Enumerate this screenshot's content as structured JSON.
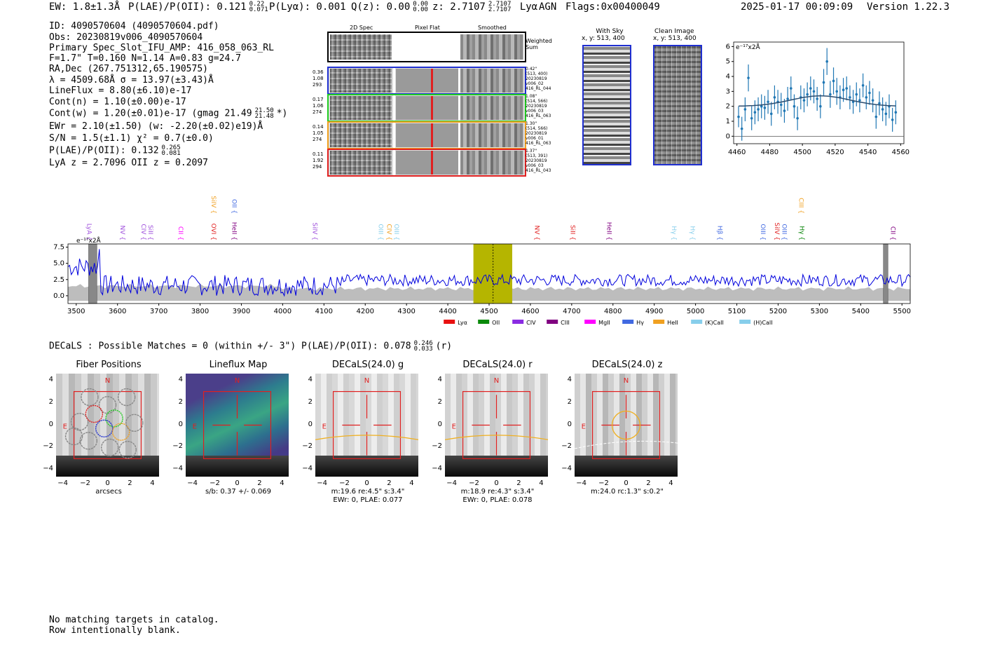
{
  "header": {
    "ew": "EW: 1.8±1.3Å",
    "plae": "P(LAE)/P(OII): 0.121",
    "plae_hi": "0.22",
    "plae_lo": "0.071",
    "plya": "P(Lyα): 0.001",
    "qz": "Q(z): 0.00",
    "qz_hi": "0.00",
    "qz_lo": "0.00",
    "z": "z: 2.7107",
    "z_hi": "2.7107",
    "z_lo": "2.7107",
    "z_line": "Lyα",
    "agn": "AGN",
    "flags": "Flags:0x00400049",
    "timestamp": "2025-01-17 00:09:09",
    "version": "Version 1.22.3"
  },
  "info": {
    "id": "ID: 4090570604 (4090570604.pdf)",
    "obs": "Obs: 20230819v006_4090570604",
    "primary": "Primary Spec_Slot_IFU_AMP: 416_058_063_RL",
    "params": "F=1.7\"  T=0.160  N=1.14  A=0.83  g=24.7",
    "radec": "RA,Dec (267.751312,65.190575)",
    "lambda": "λ = 4509.68Å  σ = 13.97(±3.43)Å",
    "lineflux": "LineFlux = 8.80(±6.10)e-17",
    "contn": "Cont(n) = 1.10(±0.00)e-17",
    "contw": "Cont(w) = 1.20(±0.01)e-17 (gmag 21.49",
    "contw_hi": "21.50",
    "contw_lo": "21.48",
    "contw_end": "*)",
    "ewr": "EWr = 2.10(±1.50) (w: -2.20(±0.02)e19)Å",
    "sn": "S/N = 1.5(±1.1)  χ² = 0.7(±0.0)",
    "plae2": "P(LAE)/P(OII): 0.132",
    "plae2_hi": "0.265",
    "plae2_lo": "0.081",
    "lyaz": "LyA z = 2.7096  OII z = 0.2097"
  },
  "cutouts": {
    "col_2d": "2D Spec",
    "col_flat": "Pixel Flat",
    "col_smooth": "Smoothed",
    "weighted": "Weighted Sum",
    "rows": [
      {
        "nums": [
          "0.36",
          "1.08",
          "293"
        ],
        "side": [
          "0.42\"",
          "(513, 400)",
          "20230819",
          "v006_02",
          "416_RL_044"
        ],
        "color": "#1f2fd0"
      },
      {
        "nums": [
          "0.17",
          "1.06",
          "274"
        ],
        "side": [
          "1.08\"",
          "(514, 566)",
          "20230819",
          "v006_03",
          "416_RL_063"
        ],
        "color": "#22cc22"
      },
      {
        "nums": [
          "0.14",
          "1.05",
          "274"
        ],
        "side": [
          "1.30\"",
          "(514, 566)",
          "20230819",
          "v006_01",
          "416_RL_063"
        ],
        "color": "#f0a020"
      },
      {
        "nums": [
          "0.11",
          "1.92",
          "294"
        ],
        "side": [
          "1.37\"",
          "(513, 391)",
          "20230819",
          "v006_03",
          "416_RL_043"
        ],
        "color": "#e02020"
      }
    ],
    "with_sky": "With Sky",
    "with_sky_xy": "x, y: 513, 400",
    "clean": "Clean Image",
    "clean_xy": "x, y: 513, 400"
  },
  "chart_data": [
    {
      "type": "scatter",
      "title": "",
      "ylabel_unit": "e⁻¹⁷x2Å",
      "xlim": [
        4458,
        4562
      ],
      "ylim": [
        -0.5,
        6.3
      ],
      "xticks": [
        "4460",
        "4480",
        "4500",
        "4520",
        "4540",
        "4560"
      ],
      "yticks": [
        "0",
        "1",
        "2",
        "3",
        "4",
        "5",
        "6"
      ],
      "x": [
        4461,
        4463,
        4465,
        4467,
        4469,
        4471,
        4473,
        4475,
        4477,
        4479,
        4481,
        4483,
        4485,
        4487,
        4489,
        4491,
        4493,
        4495,
        4497,
        4499,
        4501,
        4503,
        4505,
        4507,
        4509,
        4511,
        4513,
        4515,
        4517,
        4519,
        4521,
        4523,
        4525,
        4527,
        4529,
        4531,
        4533,
        4535,
        4537,
        4539,
        4541,
        4543,
        4545,
        4547,
        4549,
        4551,
        4553,
        4555,
        4557
      ],
      "y": [
        1.3,
        0.5,
        1.8,
        3.9,
        1.2,
        1.6,
        1.8,
        2.0,
        1.9,
        2.3,
        1.5,
        2.6,
        2.3,
        2.1,
        1.7,
        2.5,
        3.2,
        2.0,
        1.2,
        2.6,
        2.4,
        2.8,
        3.2,
        3.0,
        2.5,
        2.0,
        3.6,
        5.0,
        2.8,
        3.7,
        3.0,
        2.6,
        3.1,
        3.2,
        2.6,
        2.3,
        2.8,
        2.4,
        3.4,
        2.6,
        2.9,
        2.4,
        1.3,
        2.2,
        1.8,
        1.5,
        2.0,
        1.1,
        1.6
      ],
      "yerr": [
        0.7,
        0.8,
        0.8,
        0.9,
        0.8,
        0.8,
        0.8,
        0.8,
        0.8,
        0.8,
        0.8,
        0.8,
        0.8,
        0.8,
        0.8,
        0.8,
        0.8,
        0.8,
        0.8,
        0.8,
        0.8,
        0.8,
        0.8,
        0.8,
        0.8,
        0.8,
        0.9,
        0.9,
        0.9,
        0.9,
        0.9,
        0.8,
        0.8,
        0.8,
        0.8,
        0.8,
        0.8,
        0.8,
        0.8,
        0.8,
        0.8,
        0.8,
        0.8,
        0.8,
        0.8,
        0.8,
        0.8,
        0.8,
        0.8
      ],
      "model": {
        "continuum": 2.0,
        "amplitude": 0.7,
        "center": 4511,
        "sigma": 18
      }
    },
    {
      "type": "line",
      "xlim": [
        3480,
        5520
      ],
      "ylim": [
        -1.2,
        8.0
      ],
      "xticks": [
        "3500",
        "3600",
        "3700",
        "3800",
        "3900",
        "4000",
        "4100",
        "4200",
        "4300",
        "4400",
        "4500",
        "4600",
        "4700",
        "4800",
        "4900",
        "5000",
        "5100",
        "5200",
        "5300",
        "5400",
        "5500"
      ],
      "yticks": [
        "0.0",
        "2.5",
        "5.0",
        "7.5"
      ],
      "unit_label": "e⁻¹⁷x2Å",
      "highlight_range": [
        4462,
        4556
      ],
      "marker_x": 4509.7,
      "masked": [
        [
          3530,
          3550
        ],
        [
          5455,
          5466
        ]
      ],
      "line_labels": [
        {
          "name": "LyA",
          "x": 3522,
          "color": "#9d4ddb",
          "dy": 0
        },
        {
          "name": "NV",
          "x": 3602,
          "color": "#9d4ddb",
          "dy": 0
        },
        {
          "name": "CIV",
          "x": 3653,
          "color": "#9d4ddb",
          "dy": 0
        },
        {
          "name": "SiII",
          "x": 3670,
          "color": "#9d4ddb",
          "dy": 0
        },
        {
          "name": "CII",
          "x": 3743,
          "color": "#ff00ff",
          "dy": 0
        },
        {
          "name": "OVI",
          "x": 3823,
          "color": "#e02020",
          "dy": 0
        },
        {
          "name": "SiIV",
          "x": 3823,
          "color": "#f0a020",
          "dy": -1
        },
        {
          "name": "HeII",
          "x": 3873,
          "color": "#800080",
          "dy": 0
        },
        {
          "name": "OII",
          "x": 3873,
          "color": "#4169e1",
          "dy": -1
        },
        {
          "name": "SiIV",
          "x": 4068,
          "color": "#9d4ddb",
          "dy": 0
        },
        {
          "name": "OIII",
          "x": 4228,
          "color": "#87ceeb",
          "dy": 0
        },
        {
          "name": "CIV",
          "x": 4248,
          "color": "#f0a020",
          "dy": 0
        },
        {
          "name": "OIII",
          "x": 4266,
          "color": "#87ceeb",
          "dy": 0
        },
        {
          "name": "NV",
          "x": 4606,
          "color": "#e02020",
          "dy": 0
        },
        {
          "name": "SiII",
          "x": 4693,
          "color": "#e02020",
          "dy": 0
        },
        {
          "name": "HeII",
          "x": 4781,
          "color": "#800080",
          "dy": 0
        },
        {
          "name": "Hγ",
          "x": 4938,
          "color": "#87ceeb",
          "dy": 0
        },
        {
          "name": "Hγ",
          "x": 4983,
          "color": "#87ceeb",
          "dy": 0
        },
        {
          "name": "Hβ",
          "x": 5049,
          "color": "#4169e1",
          "dy": 0
        },
        {
          "name": "OIII",
          "x": 5153,
          "color": "#4169e1",
          "dy": 0
        },
        {
          "name": "SiIV",
          "x": 5187,
          "color": "#e02020",
          "dy": 0
        },
        {
          "name": "OIII",
          "x": 5205,
          "color": "#4169e1",
          "dy": 0
        },
        {
          "name": "Hγ",
          "x": 5248,
          "color": "#008000",
          "dy": 0
        },
        {
          "name": "CIII",
          "x": 5246,
          "color": "#f0a020",
          "dy": -1
        },
        {
          "name": "CII",
          "x": 5468,
          "color": "#800080",
          "dy": 0
        }
      ],
      "legend": [
        {
          "name": "Lyα",
          "color": "#e81010"
        },
        {
          "name": "OII",
          "color": "#0a8a0a"
        },
        {
          "name": "CIV",
          "color": "#8a2be2"
        },
        {
          "name": "CIII",
          "color": "#800080"
        },
        {
          "name": "MgII",
          "color": "#ff00ff"
        },
        {
          "name": "Hγ",
          "color": "#4169e1"
        },
        {
          "name": "HeII",
          "color": "#f0a020"
        },
        {
          "name": "(K)CaII",
          "color": "#87ceeb"
        },
        {
          "name": "(H)CaII",
          "color": "#87ceeb"
        }
      ]
    }
  ],
  "decals": {
    "summary": "DECaLS : Possible Matches = 0 (within +/- 3\")  P(LAE)/P(OII): 0.078",
    "summary_hi": "0.246",
    "summary_lo": "0.033",
    "summary_end": "(r)",
    "ticks": [
      "−4",
      "−2",
      "0",
      "2",
      "4"
    ],
    "n_label": "N",
    "e_label": "E",
    "panels": [
      {
        "title": "Fiber Positions",
        "cap1": "arcsecs",
        "cap2": ""
      },
      {
        "title": "Lineflux Map",
        "cap1": "s/b: 0.37 +/- 0.069",
        "cap2": ""
      },
      {
        "title": "DECaLS(24.0) g",
        "cap1": "m:19.6  re:4.5\"  s:3.4\"",
        "cap2": "EWr: 0, PLAE: 0.077"
      },
      {
        "title": "DECaLS(24.0) r",
        "cap1": "m:18.9  re:4.3\"  s:3.4\"",
        "cap2": "EWr: 0, PLAE: 0.078"
      },
      {
        "title": "DECaLS(24.0) z",
        "cap1": "m:24.0 rc:1.3\"  s:0.2\"",
        "cap2": ""
      }
    ]
  },
  "footer": {
    "line1": "No matching targets in catalog.",
    "line2": "Row intentionally blank."
  },
  "colors": {
    "spectrum": "#0000dd",
    "highlight": "#b5b500",
    "model": "#2b4d70",
    "points": "#1f77b4"
  }
}
